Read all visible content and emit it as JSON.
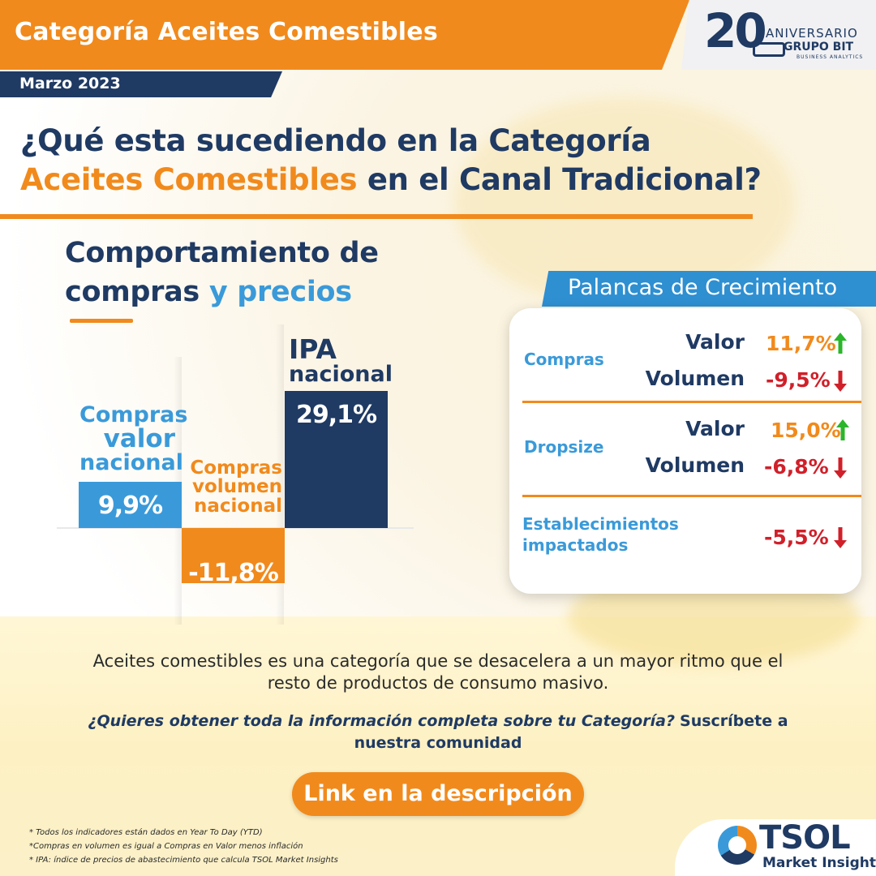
{
  "header": {
    "title": "Categoría Aceites Comestibles",
    "date": "Marzo 2023",
    "anniversary": {
      "number": "20",
      "word": "ANIVERSARIO",
      "brand": "GRUPO BIT",
      "tagline": "BUSINESS ANALYTICS"
    }
  },
  "headline": {
    "line1": "¿Qué esta sucediendo en la Categoría",
    "line2_highlight": "Aceites Comestibles",
    "line2_rest": " en el Canal Tradicional?"
  },
  "section": {
    "title_line1": "Comportamiento de",
    "title_line2_a": "compras",
    "title_line2_b": " y precios"
  },
  "bars": [
    {
      "label": [
        "Compras",
        "valor",
        "nacional"
      ],
      "value_text": "9,9%",
      "value": 9.9,
      "color": "#3a9ad9"
    },
    {
      "label": [
        "Compras",
        "volumen",
        "nacional"
      ],
      "value_text": "-11,8%",
      "value": -11.8,
      "color": "#f18a1c"
    },
    {
      "label": [
        "IPA",
        "nacional"
      ],
      "value_text": "29,1%",
      "value": 29.1,
      "color": "#1f3a63"
    }
  ],
  "palancas": {
    "tab_title": "Palancas de Crecimiento",
    "groups": [
      {
        "name": "Compras",
        "rows": [
          {
            "metric": "Valor",
            "value": "11,7%",
            "direction": "up"
          },
          {
            "metric": "Volumen",
            "value": "-9,5%",
            "direction": "down"
          }
        ]
      },
      {
        "name": "Dropsize",
        "rows": [
          {
            "metric": "Valor",
            "value": "15,0%",
            "direction": "up"
          },
          {
            "metric": "Volumen",
            "value": "-6,8%",
            "direction": "down"
          }
        ]
      },
      {
        "name_line1": "Establecimientos",
        "name_line2": "impactados",
        "rows": [
          {
            "metric": "",
            "value": "-5,5%",
            "direction": "down"
          }
        ]
      }
    ]
  },
  "description": {
    "line1": "Aceites comestibles es una categoría que se desacelera a un mayor ritmo que el",
    "line2": "resto de productos de consumo masivo."
  },
  "cta": {
    "question": "¿Quieres obtener toda la información completa sobre tu Categoría?",
    "subscribe": "Suscríbete a nuestra comunidad",
    "button": "Link en la descripción"
  },
  "notes": [
    "* Todos los indicadores están dados en Year To Day (YTD)",
    "*Compras en volumen es igual a Compras en Valor menos inflación",
    "* IPA: índice de precios de abastecimiento que calcula TSOL Market Insights"
  ],
  "brand": {
    "name": "TSOL",
    "sub": "Market Insights"
  },
  "colors": {
    "orange": "#f18a1c",
    "navy": "#1f3a63",
    "blue": "#3a9ad9",
    "up": "#2bb52b",
    "down": "#d0202a"
  }
}
